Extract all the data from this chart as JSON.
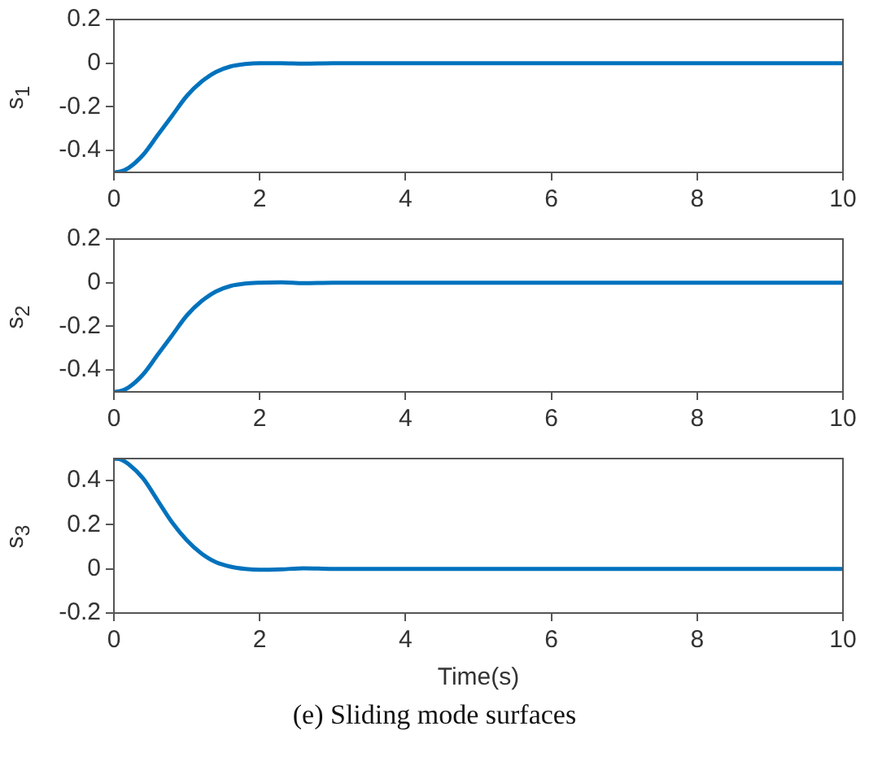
{
  "chart_data": [
    {
      "type": "line",
      "ylabel": "s$_{1}$",
      "x": [
        0,
        0.1,
        0.2,
        0.4,
        0.6,
        0.8,
        1.0,
        1.2,
        1.4,
        1.6,
        1.8,
        2.0,
        2.3,
        2.6,
        3,
        10
      ],
      "series": [
        {
          "color": "#0072bd",
          "values": [
            -0.5,
            -0.495,
            -0.48,
            -0.42,
            -0.33,
            -0.24,
            -0.15,
            -0.085,
            -0.04,
            -0.015,
            -0.004,
            0,
            0,
            -0.002,
            0,
            0
          ]
        }
      ],
      "xlim": [
        0,
        10
      ],
      "xticks": [
        0,
        2,
        4,
        6,
        8,
        10
      ],
      "ylim": [
        -0.5,
        0.2
      ],
      "yticks": [
        -0.4,
        -0.2,
        0,
        0.2
      ],
      "grid": false,
      "legend": false,
      "marker": "none"
    },
    {
      "type": "line",
      "ylabel": "s$_{2}$",
      "x": [
        0,
        0.1,
        0.2,
        0.4,
        0.6,
        0.8,
        1.0,
        1.2,
        1.4,
        1.6,
        1.8,
        2.0,
        2.3,
        2.6,
        3,
        10
      ],
      "series": [
        {
          "color": "#0072bd",
          "values": [
            -0.5,
            -0.495,
            -0.48,
            -0.42,
            -0.33,
            -0.24,
            -0.15,
            -0.085,
            -0.04,
            -0.015,
            -0.004,
            0,
            0.002,
            -0.002,
            0,
            0
          ]
        }
      ],
      "xlim": [
        0,
        10
      ],
      "xticks": [
        0,
        2,
        4,
        6,
        8,
        10
      ],
      "ylim": [
        -0.5,
        0.2
      ],
      "yticks": [
        -0.4,
        -0.2,
        0,
        0.2
      ],
      "grid": false,
      "legend": false,
      "marker": "none"
    },
    {
      "type": "line",
      "ylabel": "s$_{3}$",
      "xlabel": "Time(s)",
      "annotations": [
        "(e) Sliding mode surfaces"
      ],
      "x": [
        0,
        0.1,
        0.2,
        0.4,
        0.6,
        0.8,
        1.0,
        1.2,
        1.4,
        1.6,
        1.8,
        2.0,
        2.3,
        2.6,
        3,
        10
      ],
      "series": [
        {
          "color": "#0072bd",
          "values": [
            0.5,
            0.495,
            0.475,
            0.41,
            0.31,
            0.21,
            0.13,
            0.07,
            0.03,
            0.01,
            0,
            -0.004,
            -0.002,
            0.003,
            0,
            0
          ]
        }
      ],
      "xlim": [
        0,
        10
      ],
      "xticks": [
        0,
        2,
        4,
        6,
        8,
        10
      ],
      "ylim": [
        -0.2,
        0.5
      ],
      "yticks": [
        -0.2,
        0,
        0.2,
        0.4
      ],
      "grid": false,
      "legend": false,
      "marker": "none"
    }
  ]
}
